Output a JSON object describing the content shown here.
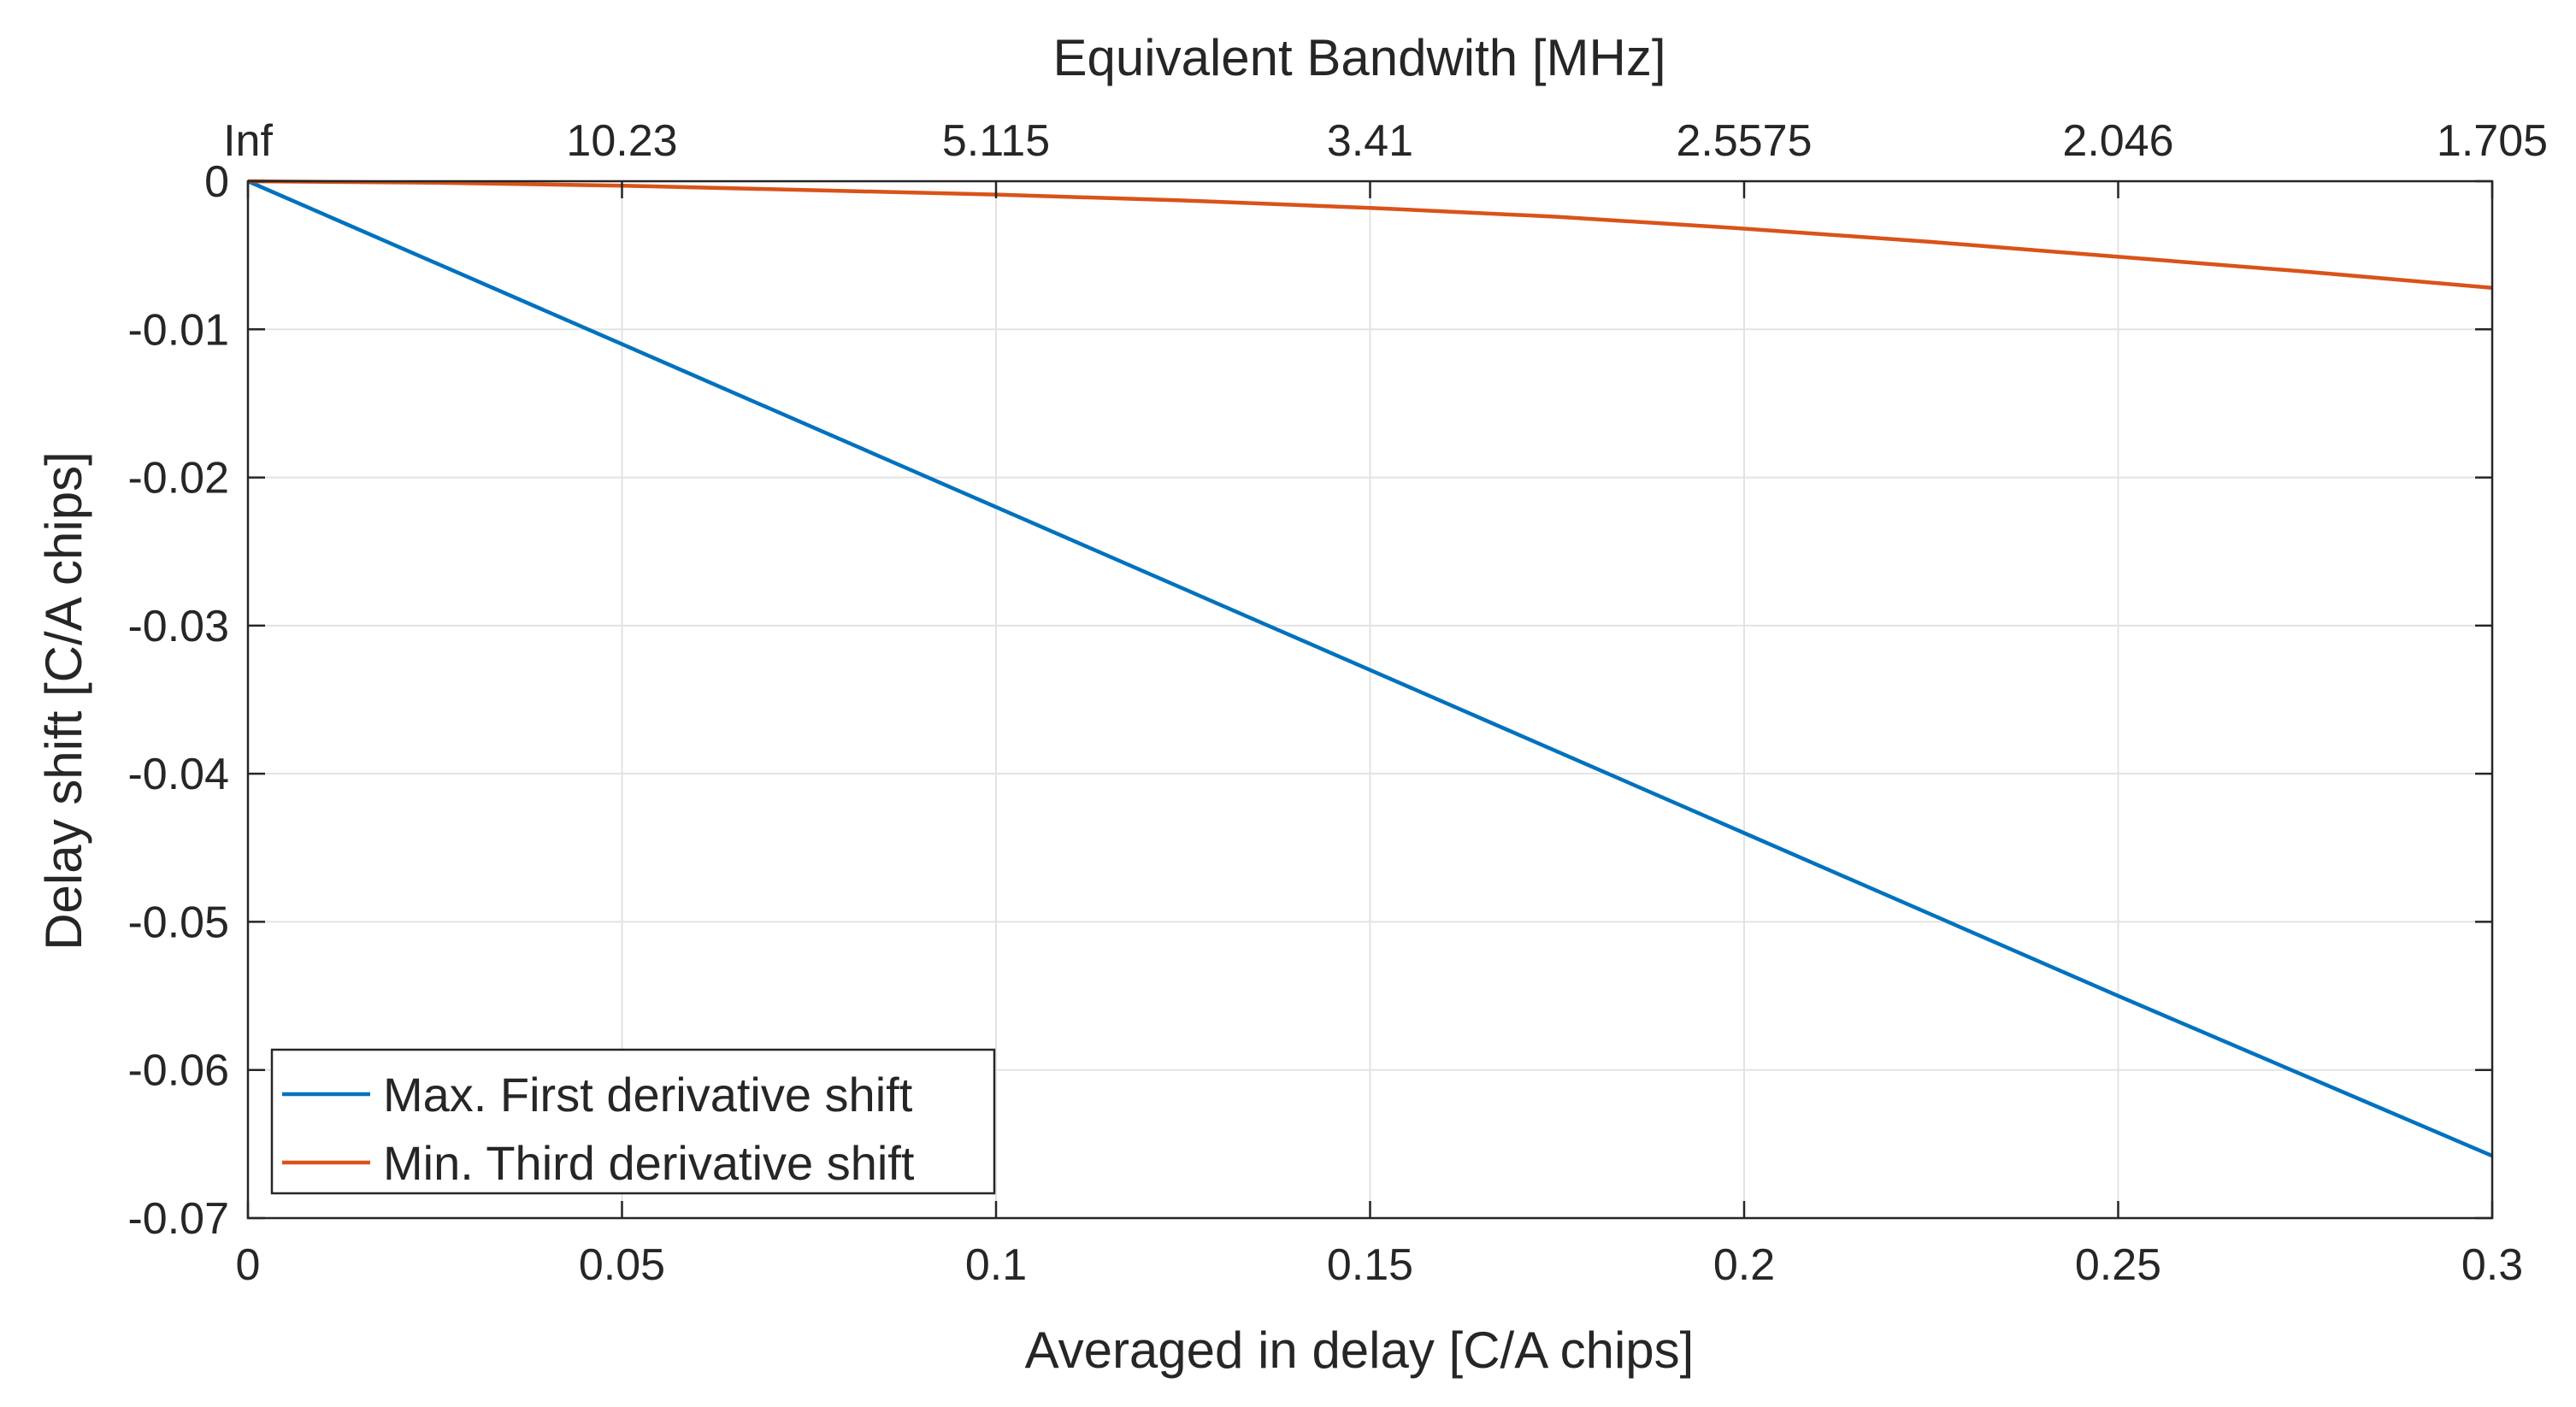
{
  "chart_data": {
    "type": "line",
    "title": "",
    "xlabel": "Averaged in delay  [C/A chips]",
    "ylabel": "Delay shift [C/A chips]",
    "top_xlabel": "Equivalent Bandwith [MHz]",
    "xlim": [
      0,
      0.3
    ],
    "ylim": [
      -0.07,
      0
    ],
    "grid": true,
    "x_ticks": [
      0,
      0.05,
      0.1,
      0.15,
      0.2,
      0.25,
      0.3
    ],
    "x_tick_labels": [
      "0",
      "0.05",
      "0.1",
      "0.15",
      "0.2",
      "0.25",
      "0.3"
    ],
    "y_ticks": [
      0,
      -0.01,
      -0.02,
      -0.03,
      -0.04,
      -0.05,
      -0.06,
      -0.07
    ],
    "y_tick_labels": [
      "0",
      "-0.01",
      "-0.02",
      "-0.03",
      "-0.04",
      "-0.05",
      "-0.06",
      "-0.07"
    ],
    "top_tick_labels": [
      "Inf",
      "10.23",
      "5.115",
      "3.41",
      "2.5575",
      "2.046",
      "1.705"
    ],
    "legend_position": "bottom-left",
    "series": [
      {
        "name": "Max. First derivative shift",
        "color": "#0072BD",
        "x": [
          0,
          0.05,
          0.1,
          0.15,
          0.2,
          0.25,
          0.3
        ],
        "y": [
          0,
          -0.011,
          -0.022,
          -0.033,
          -0.044,
          -0.055,
          -0.0658
        ]
      },
      {
        "name": "Min. Third derivative shift",
        "color": "#D95319",
        "x": [
          0,
          0.025,
          0.05,
          0.075,
          0.1,
          0.125,
          0.15,
          0.175,
          0.2,
          0.225,
          0.25,
          0.275,
          0.3
        ],
        "y": [
          0,
          -0.0001,
          -0.0003,
          -0.0006,
          -0.0009,
          -0.0013,
          -0.0018,
          -0.0024,
          -0.0032,
          -0.0041,
          -0.0051,
          -0.0061,
          -0.0072
        ]
      }
    ]
  }
}
